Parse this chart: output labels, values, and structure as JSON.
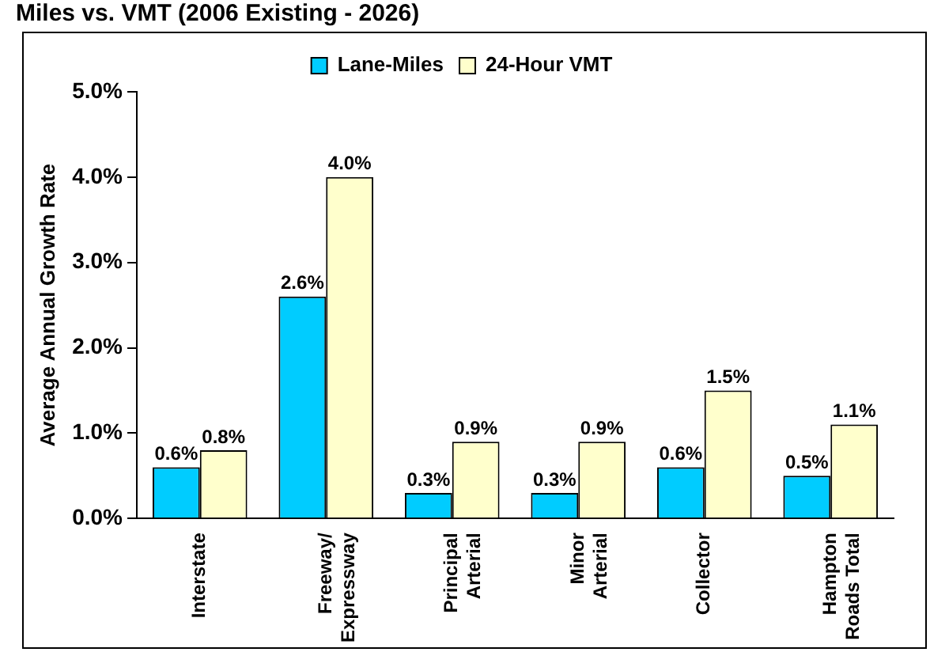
{
  "chart_data": {
    "type": "bar",
    "title": "Miles vs. VMT (2006 Existing - 2026)",
    "ylabel": "Average Annual Growth Rate",
    "categories": [
      "Interstate",
      "Freeway/\nExpressway",
      "Principal\nArterial",
      "Minor\nArterial",
      "Collector",
      "Hampton\nRoads Total"
    ],
    "series": [
      {
        "name": "Lane-Miles",
        "color": "#00ccff",
        "values": [
          0.6,
          2.6,
          0.3,
          0.3,
          0.6,
          0.5
        ],
        "value_labels": [
          "0.6%",
          "2.6%",
          "0.3%",
          "0.3%",
          "0.6%",
          "0.5%"
        ]
      },
      {
        "name": "24-Hour VMT",
        "color": "#ffffcc",
        "values": [
          0.8,
          4.0,
          0.9,
          0.9,
          1.5,
          1.1
        ],
        "value_labels": [
          "0.8%",
          "4.0%",
          "0.9%",
          "0.9%",
          "1.5%",
          "1.1%"
        ]
      }
    ],
    "ylim": [
      0,
      5
    ],
    "yticks": [
      {
        "value": 0,
        "label": "0.0%"
      },
      {
        "value": 1,
        "label": "1.0%"
      },
      {
        "value": 2,
        "label": "2.0%"
      },
      {
        "value": 3,
        "label": "3.0%"
      },
      {
        "value": 4,
        "label": "4.0%"
      },
      {
        "value": 5,
        "label": "5.0%"
      }
    ],
    "grid": false,
    "legend": "top"
  }
}
